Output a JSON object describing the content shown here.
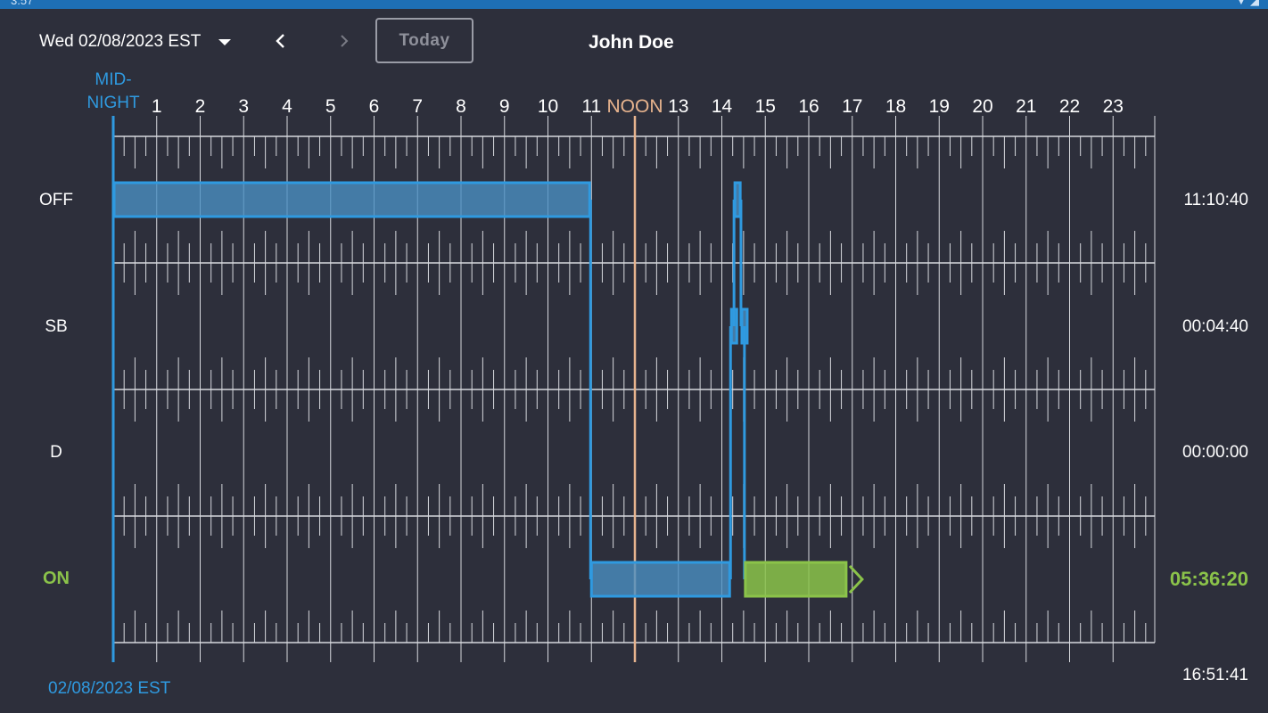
{
  "status_bar": {
    "left_text": "3:57",
    "right_text": "▼ ◢"
  },
  "header": {
    "date_selector": "Wed 02/08/2023 EST",
    "today_label": "Today",
    "driver_name": "John Doe"
  },
  "timeline": {
    "midnight_label_line1": "MID-",
    "midnight_label_line2": "NIGHT",
    "noon_label": "NOON",
    "hours": [
      "1",
      "2",
      "3",
      "4",
      "5",
      "6",
      "7",
      "8",
      "9",
      "10",
      "11",
      "NOON",
      "13",
      "14",
      "15",
      "16",
      "17",
      "18",
      "19",
      "20",
      "21",
      "22",
      "23"
    ],
    "footer_date": "02/08/2023 EST",
    "total_time": "16:51:41"
  },
  "rows": [
    {
      "label": "OFF",
      "total": "11:10:40"
    },
    {
      "label": "SB",
      "total": "00:04:40"
    },
    {
      "label": "D",
      "total": "00:00:00"
    },
    {
      "label": "ON",
      "total": "05:36:20"
    }
  ],
  "events": [
    {
      "status": "OFF",
      "start_hour": 0.0,
      "end_hour": 10.98
    },
    {
      "status": "ON",
      "start_hour": 10.98,
      "end_hour": 14.2
    },
    {
      "status": "SB",
      "start_hour": 14.2,
      "end_hour": 14.28
    },
    {
      "status": "OFF",
      "start_hour": 14.28,
      "end_hour": 14.44
    },
    {
      "status": "SB",
      "start_hour": 14.44,
      "end_hour": 14.52
    },
    {
      "status": "ON",
      "start_hour": 14.52,
      "end_hour": 16.88,
      "current": true
    }
  ],
  "colors": {
    "accent_blue": "#2f9ae0",
    "block_blue": "#4a8fc2",
    "active_green": "#8bc34a",
    "noon_line": "#e8b48e",
    "grid": "#d7d9de",
    "background": "#2d2f3b"
  }
}
